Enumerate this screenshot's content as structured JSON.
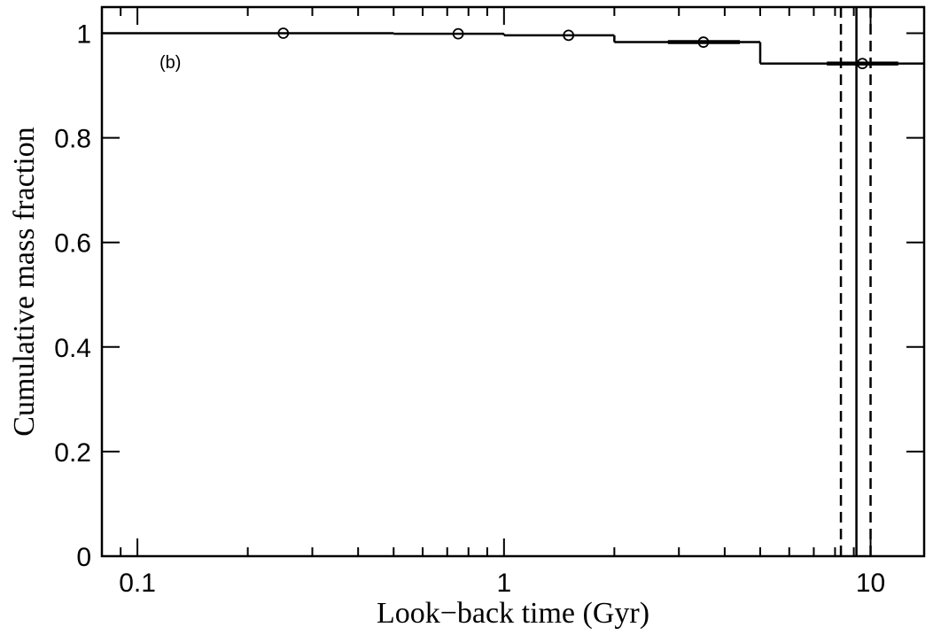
{
  "chart_data": {
    "type": "step",
    "xlabel": "Look−back time (Gyr)",
    "ylabel": "Cumulative mass fraction",
    "annotation": "(b)",
    "xscale": "log",
    "xlim": [
      0.08,
      14
    ],
    "ylim": [
      0,
      1.05
    ],
    "xticks": [
      0.1,
      1,
      10
    ],
    "xminorticks": [
      0.09,
      0.2,
      0.3,
      0.4,
      0.5,
      0.6,
      0.7,
      0.8,
      0.9,
      2,
      3,
      4,
      5,
      6,
      7,
      8,
      9
    ],
    "yticks": [
      0,
      0.2,
      0.4,
      0.6,
      0.8,
      1
    ],
    "color": "#000000",
    "step_x": [
      0.08,
      0.5,
      1,
      2,
      5,
      14
    ],
    "step_y": [
      1.0,
      0.999,
      0.996,
      0.983,
      0.942
    ],
    "points": {
      "x": [
        0.25,
        0.75,
        1.5,
        3.5,
        9.5
      ],
      "y": [
        1.0,
        0.999,
        0.996,
        0.983,
        0.942
      ],
      "xerr_low": [
        null,
        null,
        null,
        2.8,
        7.6
      ],
      "xerr_high": [
        null,
        null,
        null,
        4.4,
        11.9
      ]
    },
    "vlines": [
      {
        "x": 9.15,
        "style": "solid"
      },
      {
        "x": 8.3,
        "style": "dashed"
      },
      {
        "x": 10.0,
        "style": "dashed"
      }
    ]
  }
}
